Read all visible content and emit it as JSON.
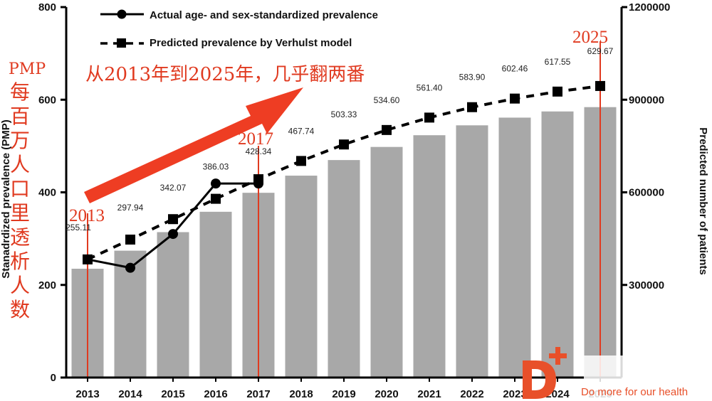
{
  "chart_data": {
    "type": "bar",
    "categories": [
      "2013",
      "2014",
      "2015",
      "2016",
      "2017",
      "2018",
      "2019",
      "2020",
      "2021",
      "2022",
      "2023",
      "2024",
      "2025"
    ],
    "y_left_label": "Stanadrdized prevalence (PMP)",
    "y_left_ticks": [
      "0",
      "200",
      "400",
      "600",
      "800"
    ],
    "y_left_lim": [
      0,
      800
    ],
    "y_right_label": "Predicted number of patients",
    "y_right_ticks": [
      "300000",
      "600000",
      "900000",
      "1200000"
    ],
    "y_right_lim": [
      0,
      1200000
    ],
    "bars": {
      "name": "Predicted number of patients",
      "values": [
        352500,
        411000,
        471000,
        537000,
        598500,
        654000,
        704500,
        747000,
        785000,
        817000,
        842000,
        862000,
        876000
      ]
    },
    "series": [
      {
        "name": "Actual age- and sex-standardized prevalence",
        "style": "solid-circle",
        "x": [
          "2013",
          "2014",
          "2015",
          "2016",
          "2017"
        ],
        "values": [
          255.11,
          237,
          310,
          419,
          419
        ]
      },
      {
        "name": "Predicted prevalence by Verhulst model",
        "style": "dashed-square",
        "x": [
          "2013",
          "2014",
          "2015",
          "2016",
          "2017",
          "2018",
          "2019",
          "2020",
          "2021",
          "2022",
          "2023",
          "2024",
          "2025"
        ],
        "values": [
          255.11,
          297.94,
          342.07,
          386.03,
          428.34,
          467.74,
          503.33,
          534.6,
          561.4,
          583.9,
          602.46,
          617.55,
          629.67
        ]
      }
    ],
    "data_labels": [
      "255.11",
      "297.94",
      "342.07",
      "386.03",
      "428.34",
      "467.74",
      "503.33",
      "534.60",
      "561.40",
      "583.90",
      "602.46",
      "617.55",
      "629.67"
    ],
    "legend": {
      "actual": "Actual age- and sex-standardized prevalence",
      "predicted": "Predicted prevalence by Verhulst model",
      "position": "top-left"
    },
    "annotations": {
      "pmp_latin": "PMP",
      "pmp_chinese": "每百万人口里透析人数",
      "arrow_text": "从2013年到2025年，几乎翻两番",
      "year_marks": [
        "2013",
        "2017",
        "2025"
      ]
    },
    "colors": {
      "bar": "#a8a8a8",
      "line": "#000000",
      "annotation": "#e03a20"
    }
  },
  "watermark": {
    "text": "Do more for our health",
    "color": "#e8502a"
  }
}
